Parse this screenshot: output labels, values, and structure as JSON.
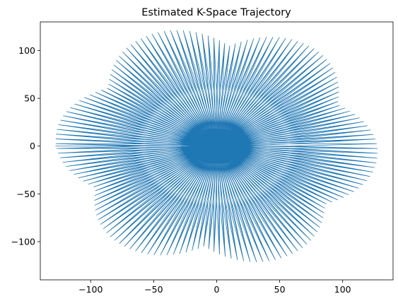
{
  "chart_data": {
    "type": "line",
    "title": "Estimated K-Space Trajectory",
    "xlabel": "",
    "ylabel": "",
    "xlim": [
      -140,
      140
    ],
    "ylim": [
      -140,
      130
    ],
    "xticks": [
      -100,
      -50,
      0,
      50,
      100
    ],
    "yticks": [
      -100,
      -50,
      0,
      50,
      100
    ],
    "xtick_labels": [
      "−100",
      "−50",
      "0",
      "50",
      "100"
    ],
    "ytick_labels": [
      "−100",
      "−50",
      "0",
      "50",
      "100"
    ],
    "grid": false,
    "legend": "none",
    "series": [
      {
        "color": "#1f77b4",
        "trajectory": {
          "kind": "spoke-and-zigzag k-space trajectory",
          "spoke_count": 160,
          "inner_radius": 58,
          "outer_radius_max": 128,
          "outer_radius_min": 80,
          "start_point": [
            -128,
            0
          ]
        }
      }
    ]
  }
}
